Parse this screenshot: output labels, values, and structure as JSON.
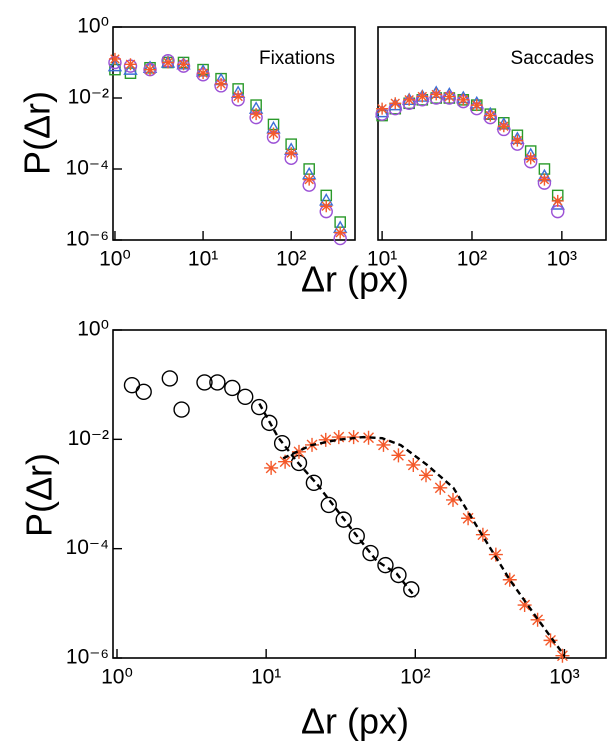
{
  "chart_data": [
    {
      "type": "scatter",
      "title": "Fixations",
      "xlabel": "Δr (px)",
      "ylabel": "P(Δr)",
      "xscale": "log",
      "yscale": "log",
      "xlim": [
        0.95,
        530
      ],
      "ylim": [
        1e-06,
        1
      ],
      "xticks": [
        {
          "value": 1,
          "label": "10⁰"
        },
        {
          "value": 10,
          "label": "10¹"
        },
        {
          "value": 100,
          "label": "10²"
        }
      ],
      "yticks": [
        {
          "value": 1,
          "label": "10⁰"
        },
        {
          "value": 0.01,
          "label": "10⁻²"
        },
        {
          "value": 0.0001,
          "label": "10⁻⁴"
        },
        {
          "value": 1e-06,
          "label": "10⁻⁶"
        }
      ],
      "series": [
        {
          "marker": "square",
          "color": "#2a9a2a",
          "x": [
            1,
            1.5,
            2.5,
            4,
            6,
            10,
            16,
            25,
            40,
            63,
            100,
            160,
            250,
            360
          ],
          "values": [
            0.063,
            0.05,
            0.071,
            0.1,
            0.1,
            0.063,
            0.035,
            0.018,
            0.0063,
            0.0018,
            0.0005,
            0.0001,
            1.8e-05,
            3.2e-06
          ]
        },
        {
          "marker": "triangle",
          "color": "#3d6fd6",
          "x": [
            1,
            1.5,
            2.5,
            4,
            6,
            10,
            16,
            25,
            40,
            63,
            100,
            160,
            250,
            360
          ],
          "values": [
            0.079,
            0.063,
            0.071,
            0.1,
            0.089,
            0.056,
            0.032,
            0.014,
            0.005,
            0.0014,
            0.00035,
            7.1e-05,
            1.3e-05,
            2.2e-06
          ]
        },
        {
          "marker": "circle",
          "color": "#9c52d6",
          "x": [
            1,
            1.5,
            2.5,
            4,
            6,
            10,
            16,
            25,
            40,
            63,
            100,
            160,
            250,
            360
          ],
          "values": [
            0.1,
            0.079,
            0.063,
            0.112,
            0.079,
            0.045,
            0.022,
            0.0089,
            0.0028,
            0.00079,
            0.0002,
            3.5e-05,
            6.3e-06,
            1.1e-06
          ]
        },
        {
          "marker": "asterisk",
          "color": "#f4592a",
          "x": [
            1,
            1.5,
            2.5,
            4,
            6,
            10,
            16,
            25,
            40,
            63,
            100,
            160,
            250,
            360
          ],
          "values": [
            0.126,
            0.089,
            0.063,
            0.1,
            0.089,
            0.05,
            0.025,
            0.011,
            0.0035,
            0.001,
            0.00028,
            5e-05,
            8.9e-06,
            1.6e-06
          ]
        }
      ]
    },
    {
      "type": "scatter",
      "title": "Saccades",
      "xscale": "log",
      "yscale": "log",
      "xlim": [
        9,
        3100
      ],
      "ylim": [
        1e-06,
        1
      ],
      "xticks": [
        {
          "value": 10,
          "label": "10¹"
        },
        {
          "value": 100,
          "label": "10²"
        },
        {
          "value": 1000,
          "label": "10³"
        }
      ],
      "series": [
        {
          "marker": "square",
          "color": "#2a9a2a",
          "x": [
            10,
            14,
            20,
            28,
            40,
            56,
            80,
            113,
            160,
            226,
            320,
            450,
            640,
            900
          ],
          "values": [
            0.0032,
            0.005,
            0.0071,
            0.0089,
            0.01,
            0.01,
            0.0089,
            0.0063,
            0.0035,
            0.002,
            0.00089,
            0.00032,
            0.0001,
            1.8e-05
          ]
        },
        {
          "marker": "triangle",
          "color": "#3d6fd6",
          "x": [
            10,
            14,
            20,
            28,
            40,
            56,
            80,
            113,
            160,
            226,
            320,
            450,
            640,
            900
          ],
          "values": [
            0.004,
            0.0063,
            0.0089,
            0.011,
            0.014,
            0.0126,
            0.01,
            0.0071,
            0.0035,
            0.0018,
            0.00071,
            0.00025,
            6.3e-05,
            1e-05
          ]
        },
        {
          "marker": "circle",
          "color": "#9c52d6",
          "x": [
            10,
            14,
            20,
            28,
            40,
            56,
            80,
            113,
            160,
            226,
            320,
            450,
            640,
            900
          ],
          "values": [
            0.0035,
            0.005,
            0.0071,
            0.0089,
            0.01,
            0.01,
            0.0079,
            0.005,
            0.0028,
            0.0013,
            0.0005,
            0.00016,
            4e-05,
            6.3e-06
          ]
        },
        {
          "marker": "asterisk",
          "color": "#f4592a",
          "x": [
            10,
            14,
            20,
            28,
            40,
            56,
            80,
            113,
            160,
            226,
            320,
            450,
            640,
            900
          ],
          "values": [
            0.005,
            0.0071,
            0.0089,
            0.011,
            0.0126,
            0.011,
            0.0089,
            0.0063,
            0.0032,
            0.0016,
            0.00063,
            0.0002,
            5e-05,
            1.26e-05
          ]
        }
      ]
    },
    {
      "type": "scatter",
      "xlabel": "Δr (px)",
      "ylabel": "P(Δr)",
      "xscale": "log",
      "yscale": "log",
      "xlim": [
        0.94,
        1900
      ],
      "ylim": [
        1e-06,
        1
      ],
      "xticks": [
        {
          "value": 1,
          "label": "10⁰"
        },
        {
          "value": 10,
          "label": "10¹"
        },
        {
          "value": 100,
          "label": "10²"
        },
        {
          "value": 1000,
          "label": "10³"
        }
      ],
      "yticks": [
        {
          "value": 1,
          "label": "10⁰"
        },
        {
          "value": 0.01,
          "label": "10⁻²"
        },
        {
          "value": 0.0001,
          "label": "10⁻⁴"
        },
        {
          "value": 1e-06,
          "label": "10⁻⁶"
        }
      ],
      "series": [
        {
          "marker": "circle",
          "color": "#000000",
          "x": [
            1.26,
            1.51,
            2.26,
            2.71,
            3.86,
            4.71,
            5.93,
            7.24,
            8.98,
            10.5,
            12.8,
            16.6,
            20.9,
            26.3,
            33.1,
            40.5,
            50.1,
            63.1,
            77.1,
            94
          ],
          "values": [
            0.098,
            0.074,
            0.13,
            0.035,
            0.11,
            0.11,
            0.087,
            0.06,
            0.039,
            0.02,
            0.0085,
            0.0037,
            0.0016,
            0.00063,
            0.00034,
            0.00017,
            8.3e-05,
            5e-05,
            3.3e-05,
            1.8e-05
          ]
        },
        {
          "marker": "asterisk",
          "color": "#f4592a",
          "x": [
            10.8,
            13.4,
            16.6,
            20.3,
            25.1,
            30.7,
            38.6,
            48.6,
            61.2,
            77.1,
            97,
            118,
            147,
            179,
            226,
            284,
            347,
            430,
            541,
            661,
            807,
            970
          ],
          "values": [
            0.003,
            0.0039,
            0.0059,
            0.0079,
            0.0098,
            0.011,
            0.011,
            0.0107,
            0.0079,
            0.0051,
            0.0034,
            0.0022,
            0.0013,
            0.00078,
            0.00036,
            0.00018,
            7.8e-05,
            2.7e-05,
            9.3e-06,
            5e-06,
            2.1e-06,
            1.1e-06
          ]
        },
        {
          "type": "line",
          "dash": true,
          "color": "#000000",
          "x": [
            9,
            12,
            16,
            22,
            30,
            40,
            55,
            75,
            100
          ],
          "values": [
            0.045,
            0.011,
            0.004,
            0.0015,
            0.0005,
            0.00018,
            6e-05,
            3.5e-05,
            1.3e-05
          ]
        },
        {
          "type": "line",
          "dash": true,
          "color": "#000000",
          "x": [
            13,
            20,
            30,
            45,
            60,
            80,
            120,
            180,
            280,
            430,
            660,
            1000
          ],
          "values": [
            0.0045,
            0.0078,
            0.0098,
            0.011,
            0.0105,
            0.0078,
            0.0034,
            0.0013,
            0.00018,
            2.7e-05,
            5.2e-06,
            1.1e-06
          ]
        }
      ]
    }
  ]
}
